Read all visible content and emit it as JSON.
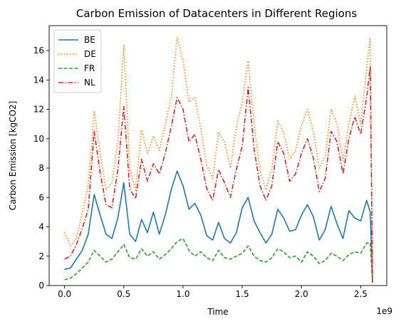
{
  "chart_data": {
    "type": "line",
    "title": "Carbon Emission of Datacenters in Different Regions",
    "xlabel": "Time",
    "ylabel": "Carbon Emission [kgCO2]",
    "x_offset_label": "1e9",
    "xlim": [
      -0.13,
      2.72
    ],
    "ylim": [
      0,
      17.7
    ],
    "x_ticks": [
      0.0,
      0.5,
      1.0,
      1.5,
      2.0,
      2.5
    ],
    "x_tick_labels": [
      "0.0",
      "0.5",
      "1.0",
      "1.5",
      "2.0",
      "2.5"
    ],
    "y_ticks": [
      0,
      2,
      4,
      6,
      8,
      10,
      12,
      14,
      16
    ],
    "y_tick_labels": [
      "0",
      "2",
      "4",
      "6",
      "8",
      "10",
      "12",
      "14",
      "16"
    ],
    "grid": false,
    "legend_position": "top-left",
    "x": [
      0.0,
      0.05,
      0.1,
      0.15,
      0.2,
      0.25,
      0.3,
      0.35,
      0.4,
      0.45,
      0.5,
      0.55,
      0.6,
      0.65,
      0.7,
      0.75,
      0.8,
      0.85,
      0.9,
      0.95,
      1.0,
      1.05,
      1.1,
      1.15,
      1.2,
      1.25,
      1.3,
      1.35,
      1.4,
      1.45,
      1.5,
      1.55,
      1.6,
      1.65,
      1.7,
      1.75,
      1.8,
      1.85,
      1.9,
      1.95,
      2.0,
      2.05,
      2.1,
      2.15,
      2.2,
      2.25,
      2.3,
      2.35,
      2.4,
      2.45,
      2.5,
      2.55,
      2.58,
      2.6
    ],
    "series": [
      {
        "name": "BE",
        "color": "#1f77b4",
        "style": "solid",
        "values": [
          1.1,
          1.2,
          1.8,
          2.4,
          3.5,
          6.2,
          4.8,
          3.5,
          3.2,
          4.6,
          7.0,
          3.5,
          3.0,
          4.5,
          3.6,
          5.0,
          3.5,
          4.8,
          6.5,
          7.8,
          6.8,
          5.2,
          5.6,
          4.8,
          3.4,
          3.1,
          4.3,
          3.2,
          2.9,
          3.6,
          5.3,
          6.0,
          4.4,
          3.6,
          2.9,
          3.5,
          5.2,
          4.6,
          3.7,
          3.8,
          4.8,
          5.5,
          4.7,
          3.1,
          3.8,
          5.4,
          4.2,
          3.2,
          5.1,
          4.6,
          4.4,
          5.8,
          5.0,
          0.5
        ]
      },
      {
        "name": "DE",
        "color": "#ff7f0e",
        "style": "dotted",
        "values": [
          3.6,
          2.7,
          3.2,
          5.0,
          6.8,
          11.9,
          9.0,
          6.5,
          7.0,
          9.8,
          16.4,
          8.0,
          6.5,
          10.6,
          9.0,
          10.2,
          9.2,
          11.0,
          12.8,
          16.9,
          15.3,
          12.5,
          12.8,
          10.7,
          8.2,
          7.3,
          10.4,
          9.8,
          8.0,
          10.8,
          12.5,
          15.3,
          11.0,
          7.8,
          6.5,
          8.0,
          11.2,
          10.4,
          8.6,
          9.2,
          10.9,
          12.0,
          10.5,
          8.0,
          8.8,
          12.0,
          11.0,
          8.5,
          11.0,
          12.9,
          11.0,
          14.8,
          16.9,
          0.3
        ]
      },
      {
        "name": "FR",
        "color": "#2ca02c",
        "style": "dashed",
        "values": [
          0.4,
          0.5,
          0.8,
          1.2,
          1.6,
          2.4,
          2.0,
          1.6,
          1.8,
          2.3,
          2.8,
          1.9,
          1.8,
          2.5,
          2.0,
          2.3,
          1.8,
          2.1,
          2.5,
          3.0,
          3.2,
          2.4,
          2.0,
          2.3,
          1.9,
          1.7,
          2.4,
          1.9,
          1.8,
          2.0,
          2.2,
          2.7,
          2.0,
          1.7,
          1.6,
          1.9,
          2.5,
          2.3,
          1.9,
          2.0,
          1.6,
          2.3,
          2.0,
          1.5,
          1.7,
          2.2,
          2.0,
          1.7,
          2.1,
          2.3,
          2.2,
          2.9,
          2.9,
          0.2
        ]
      },
      {
        "name": "NL",
        "color": "#d62728",
        "style": "dashdot",
        "values": [
          1.8,
          2.0,
          2.8,
          3.9,
          5.2,
          10.5,
          7.7,
          5.5,
          5.3,
          7.9,
          12.2,
          6.6,
          5.9,
          8.6,
          7.1,
          8.3,
          7.6,
          9.0,
          10.8,
          12.8,
          12.0,
          9.8,
          10.3,
          8.6,
          6.6,
          5.8,
          7.9,
          7.0,
          6.0,
          7.9,
          9.5,
          13.5,
          9.3,
          6.8,
          5.8,
          6.8,
          9.8,
          9.0,
          7.1,
          7.6,
          9.0,
          10.0,
          8.7,
          6.4,
          7.3,
          10.5,
          9.8,
          7.6,
          10.0,
          11.5,
          10.3,
          12.8,
          14.9,
          0.2
        ]
      }
    ]
  }
}
